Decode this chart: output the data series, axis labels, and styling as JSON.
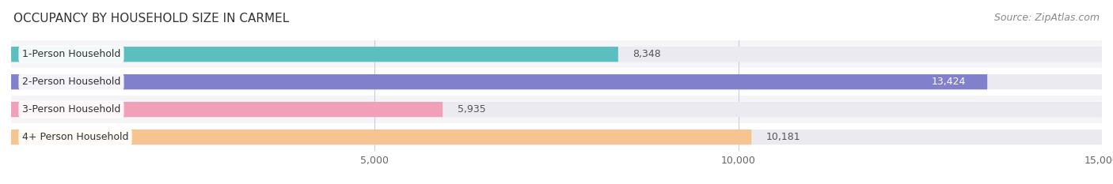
{
  "title": "OCCUPANCY BY HOUSEHOLD SIZE IN CARMEL",
  "source": "Source: ZipAtlas.com",
  "categories": [
    "1-Person Household",
    "2-Person Household",
    "3-Person Household",
    "4+ Person Household"
  ],
  "values": [
    8348,
    13424,
    5935,
    10181
  ],
  "bar_colors": [
    "#5BBFBF",
    "#8080CC",
    "#F0A0B8",
    "#F5C490"
  ],
  "bar_bg_color": "#EAEAF0",
  "xlim": [
    0,
    15000
  ],
  "xticks": [
    5000,
    10000,
    15000
  ],
  "xtick_labels": [
    "5,000",
    "10,000",
    "15,000"
  ],
  "label_inside_color": "white",
  "label_outside_color": "#555555",
  "label_inside_threshold": 13000,
  "background_color": "#FFFFFF",
  "row_bg_colors": [
    "#F5F5F8",
    "#FFFFFF",
    "#F5F5F8",
    "#FFFFFF"
  ],
  "bar_height": 0.55,
  "title_fontsize": 11,
  "source_fontsize": 9,
  "tick_fontsize": 9,
  "label_fontsize": 9,
  "category_fontsize": 9,
  "grid_color": "#CCCCDD"
}
